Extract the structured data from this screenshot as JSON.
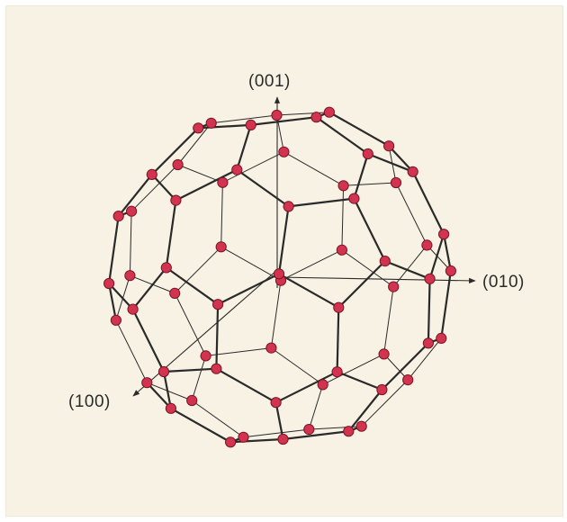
{
  "axes": {
    "z_label": "(001)",
    "y_label": "(010)",
    "x_label": "(100)"
  },
  "colors": {
    "paper": "#f7f2e3",
    "atom_fill": "#d2344f",
    "atom_edge": "#7a1526",
    "bond": "#2a2a2a"
  }
}
